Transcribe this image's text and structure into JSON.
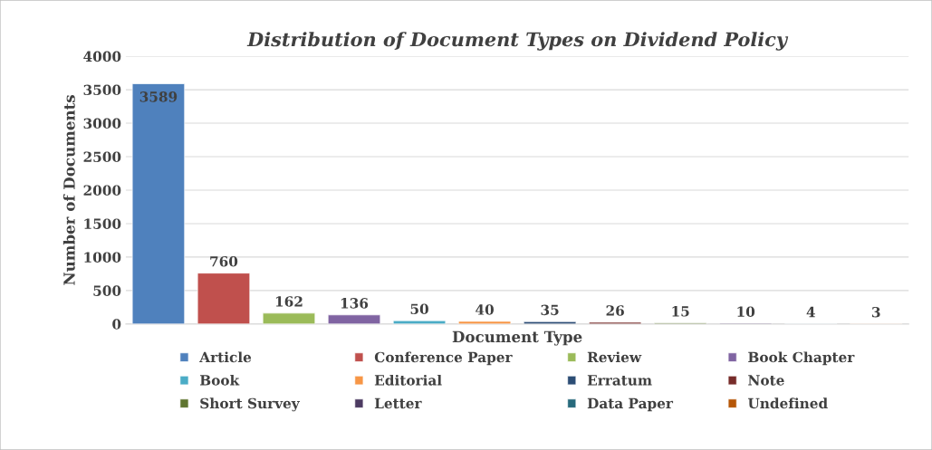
{
  "chart_data": {
    "type": "bar",
    "title": "Distribution of Document Types on Dividend Policy",
    "xlabel": "Document Type",
    "ylabel": "Number of Documents",
    "categories": [
      null
    ],
    "series": [
      {
        "name": "Article",
        "color": "#4f81bd",
        "values": [
          3589
        ]
      },
      {
        "name": "Conference Paper",
        "color": "#c0504d",
        "values": [
          760
        ]
      },
      {
        "name": "Review",
        "color": "#9bbb59",
        "values": [
          162
        ]
      },
      {
        "name": "Book Chapter",
        "color": "#8064a2",
        "values": [
          136
        ]
      },
      {
        "name": "Book",
        "color": "#4bacc6",
        "values": [
          50
        ]
      },
      {
        "name": "Editorial",
        "color": "#f79646",
        "values": [
          40
        ]
      },
      {
        "name": "Erratum",
        "color": "#2c4d75",
        "values": [
          35
        ]
      },
      {
        "name": "Note",
        "color": "#772c2a",
        "values": [
          26
        ]
      },
      {
        "name": "Short Survey",
        "color": "#5f7530",
        "values": [
          15
        ]
      },
      {
        "name": "Letter",
        "color": "#4d3b62",
        "values": [
          10
        ]
      },
      {
        "name": "Data Paper",
        "color": "#276a7c",
        "values": [
          4
        ]
      },
      {
        "name": "Undefined",
        "color": "#b65708",
        "values": [
          3
        ]
      }
    ],
    "ylim": [
      0,
      4000
    ],
    "yticks": [
      0,
      500,
      1000,
      1500,
      2000,
      2500,
      3000,
      3500,
      4000
    ],
    "grid": "y",
    "legend": "bottom",
    "data_labels": true
  }
}
